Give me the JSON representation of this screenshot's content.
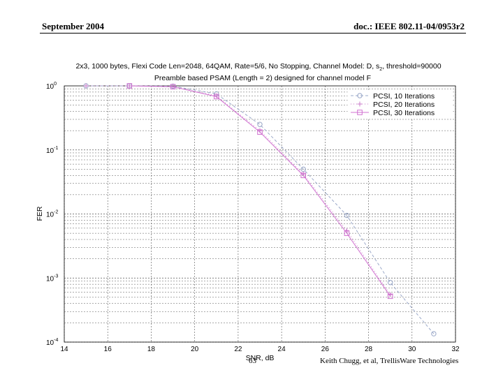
{
  "header": {
    "left": "September 2004",
    "right": "doc.: IEEE 802.11-04/0953r2"
  },
  "footer": {
    "page": "63",
    "author": "Keith Chugg, et al, TrellisWare Technologies"
  },
  "chart_data": {
    "type": "line",
    "title_line1": "2x3, 1000 bytes, Flexi Code Len=2048, 64QAM, Rate=5/6, No Stopping, Channel Model: D, s",
    "title_sub": "2",
    "title_line1_tail": ", threshold=90000",
    "title_line2": "Preamble based PSAM (Length = 2) designed for channel model F",
    "xlabel": "SNR, dB",
    "ylabel": "FER",
    "xlim": [
      14,
      32
    ],
    "ylim": [
      0.0001,
      1
    ],
    "yscale": "log",
    "grid": "dashed",
    "legend_position": "top-right",
    "x_ticks": [
      "14",
      "16",
      "18",
      "20",
      "22",
      "24",
      "26",
      "28",
      "30",
      "32"
    ],
    "y_ticks": [
      {
        "base": "10",
        "exp": "0"
      },
      {
        "base": "10",
        "exp": "-1"
      },
      {
        "base": "10",
        "exp": "-2"
      },
      {
        "base": "10",
        "exp": "-3"
      },
      {
        "base": "10",
        "exp": "-4"
      }
    ],
    "series": [
      {
        "name": "PCSI, 10 Iterations",
        "color": "#9aa8c8",
        "marker": "circle",
        "dash": "4,3",
        "x": [
          15,
          17,
          19,
          21,
          23,
          25,
          27,
          29,
          31
        ],
        "y": [
          1.0,
          1.0,
          0.99,
          0.75,
          0.25,
          0.05,
          0.0095,
          0.00085,
          0.000135
        ]
      },
      {
        "name": "PCSI, 20 Iterations",
        "color": "#c878c8",
        "marker": "plus",
        "dash": "1,3",
        "x": [
          15,
          17,
          19,
          21,
          23,
          25,
          27,
          29
        ],
        "y": [
          1.0,
          1.0,
          0.98,
          0.7,
          0.2,
          0.042,
          0.0055,
          0.00055
        ]
      },
      {
        "name": "PCSI, 30 Iterations",
        "color": "#d070d0",
        "marker": "square",
        "dash": "",
        "x": [
          17,
          19,
          21,
          23,
          25,
          27,
          29
        ],
        "y": [
          1.0,
          0.97,
          0.68,
          0.19,
          0.04,
          0.005,
          0.00052
        ]
      }
    ]
  }
}
